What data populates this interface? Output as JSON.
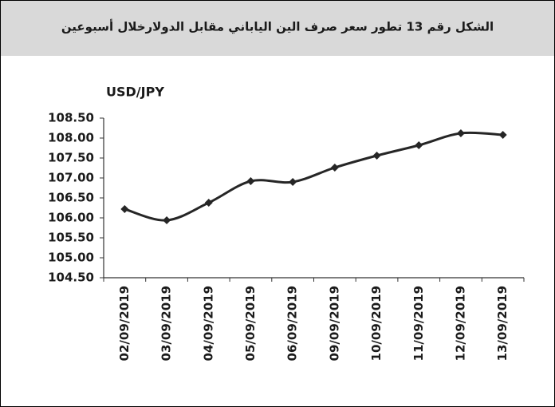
{
  "chart_data": {
    "type": "line",
    "title": "الشكل رقم 13 تطور سعر صرف الين الياباني مقابل الدولارخلال أسبوعين",
    "y_label": "USD/JPY",
    "categories": [
      "02/09/2019",
      "03/09/2019",
      "04/09/2019",
      "05/09/2019",
      "06/09/2019",
      "09/09/2019",
      "10/09/2019",
      "11/09/2019",
      "12/09/2019",
      "13/09/2019"
    ],
    "series": [
      {
        "name": "USD/JPY",
        "color": "#262626",
        "values": [
          106.22,
          105.94,
          106.38,
          106.92,
          106.9,
          107.26,
          107.56,
          107.82,
          108.12,
          108.08
        ]
      }
    ],
    "ylim": [
      104.5,
      108.5
    ],
    "yticks": [
      {
        "value": 104.5,
        "label": "104.50"
      },
      {
        "value": 105,
        "label": "105.00"
      },
      {
        "value": 105.5,
        "label": "105.50"
      },
      {
        "value": 106,
        "label": "106.00"
      },
      {
        "value": 106.5,
        "label": "106.50"
      },
      {
        "value": 107,
        "label": "107.00"
      },
      {
        "value": 107.5,
        "label": "107.50"
      },
      {
        "value": 108,
        "label": "108.00"
      },
      {
        "value": 108.5,
        "label": "108.50"
      }
    ],
    "grid": false,
    "smooth": true
  }
}
